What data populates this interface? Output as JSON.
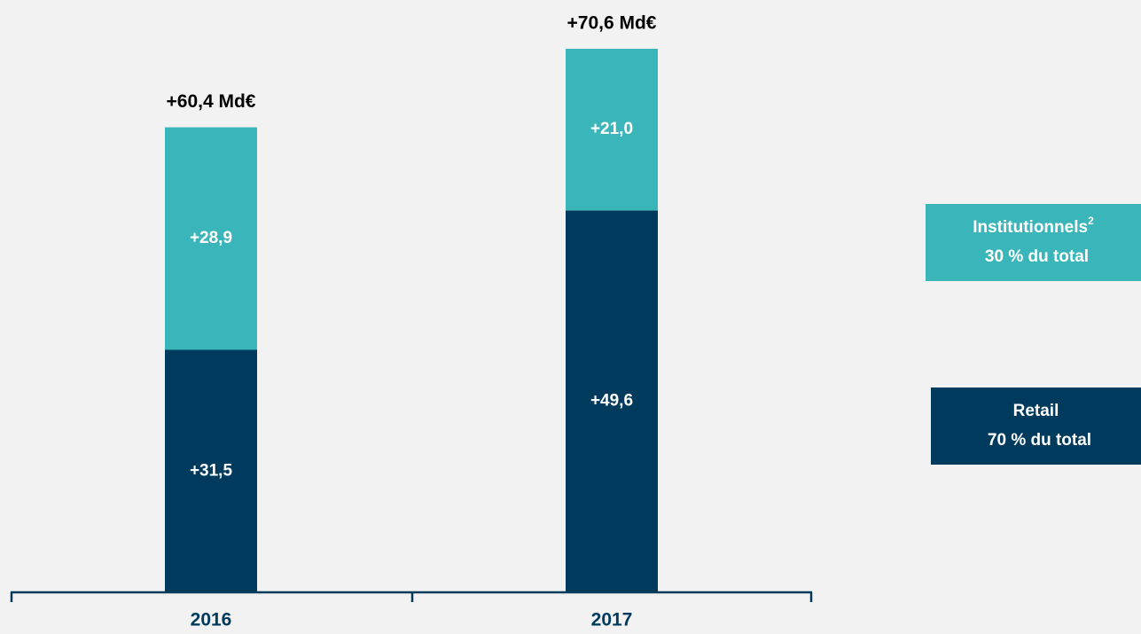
{
  "chart_data": {
    "type": "stacked_bar",
    "categories": [
      "2016",
      "2017"
    ],
    "series": [
      {
        "name": "Retail",
        "color": "#003a5d",
        "values": [
          31.5,
          49.6
        ],
        "value_labels": [
          "+31,5",
          "+49,6"
        ],
        "share_label": "70 % du total"
      },
      {
        "name": "Institutionnels",
        "note": "2",
        "color": "#3ab5b9",
        "values": [
          28.9,
          21.0
        ],
        "value_labels": [
          "+28,9",
          "+21,0"
        ],
        "share_label": "30 % du total"
      }
    ],
    "total_labels": [
      "+60,4 Md€",
      "+70,6 Md€"
    ]
  }
}
